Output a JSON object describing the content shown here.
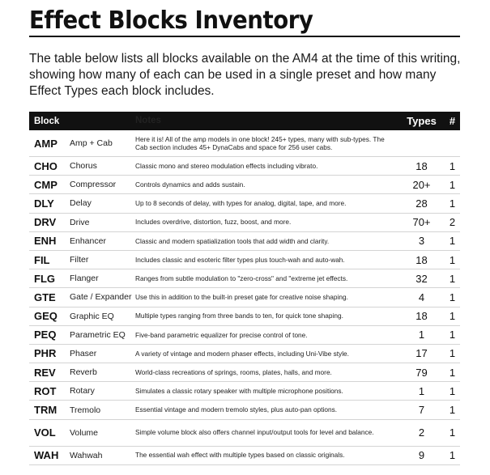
{
  "title": "Effect Blocks Inventory",
  "intro": "The table below lists all blocks available on the AM4 at the time of this writing, showing how many of each can be used in a single preset and how many Effect Types each block includes.",
  "table": {
    "headers": {
      "block": "Block",
      "name": "",
      "notes": "Notes",
      "types": "Types",
      "count": "#"
    },
    "rows": [
      {
        "block": "AMP",
        "name": "Amp + Cab",
        "notes": "Here it is! All of the amp models in one block! 245+ types, many with sub-types. The Cab section includes 45+ DynaCabs and space for 256 user cabs.",
        "types": "",
        "count": ""
      },
      {
        "block": "CHO",
        "name": "Chorus",
        "notes": "Classic mono and stereo modulation effects including vibrato.",
        "types": "18",
        "count": "1"
      },
      {
        "block": "CMP",
        "name": "Compressor",
        "notes": "Controls dynamics and adds sustain.",
        "types": "20+",
        "count": "1"
      },
      {
        "block": "DLY",
        "name": "Delay",
        "notes": "Up to 8 seconds of delay, with types for analog, digital, tape, and more.",
        "types": "28",
        "count": "1"
      },
      {
        "block": "DRV",
        "name": "Drive",
        "notes": "Includes overdrive, distortion, fuzz, boost, and more.",
        "types": "70+",
        "count": "2"
      },
      {
        "block": "ENH",
        "name": "Enhancer",
        "notes": "Classic and modern spatialization tools that add width and clarity.",
        "types": "3",
        "count": "1"
      },
      {
        "block": "FIL",
        "name": "Filter",
        "notes": "Includes classic and esoteric filter types plus touch-wah and auto-wah.",
        "types": "18",
        "count": "1"
      },
      {
        "block": "FLG",
        "name": "Flanger",
        "notes": "Ranges from subtle modulation to \"zero-cross\" and \"extreme jet effects.",
        "types": "32",
        "count": "1"
      },
      {
        "block": "GTE",
        "name": "Gate / Expander",
        "notes": "Use this in addition to the built-in preset gate for creative noise shaping.",
        "types": "4",
        "count": "1"
      },
      {
        "block": "GEQ",
        "name": "Graphic EQ",
        "notes": "Multiple types ranging from three bands to ten, for quick tone shaping.",
        "types": "18",
        "count": "1"
      },
      {
        "block": "PEQ",
        "name": "Parametric EQ",
        "notes": "Five-band parametric equalizer for precise control of tone.",
        "types": "1",
        "count": "1"
      },
      {
        "block": "PHR",
        "name": "Phaser",
        "notes": "A variety of vintage and modern phaser effects, including Uni-Vibe style.",
        "types": "17",
        "count": "1"
      },
      {
        "block": "REV",
        "name": "Reverb",
        "notes": "World-class recreations of springs, rooms, plates, halls, and more.",
        "types": "79",
        "count": "1"
      },
      {
        "block": "ROT",
        "name": "Rotary",
        "notes": "Simulates a classic rotary speaker with multiple microphone positions.",
        "types": "1",
        "count": "1"
      },
      {
        "block": "TRM",
        "name": "Tremolo",
        "notes": "Essential vintage and modern tremolo styles, plus auto-pan options.",
        "types": "7",
        "count": "1"
      },
      {
        "block": "VOL",
        "name": "Volume",
        "notes": "Simple volume block also offers channel input/output tools for level and balance.",
        "types": "2",
        "count": "1"
      },
      {
        "block": "WAH",
        "name": "Wahwah",
        "notes": "The essential wah effect with multiple types based on classic originals.",
        "types": "9",
        "count": "1"
      }
    ]
  }
}
